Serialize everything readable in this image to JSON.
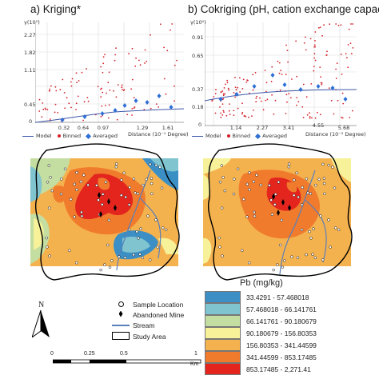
{
  "panels": {
    "a": {
      "title": "a) Kriging*",
      "yunit": "γ(10⁰)",
      "yticks": [
        "2.27",
        "1.82",
        "1.11",
        "0.45",
        "0"
      ],
      "xticks": [
        "0.32",
        "0.64",
        "0.97",
        "1.29",
        "1.61"
      ],
      "xlabel": "Distance (10⁻¹ Degree)",
      "legend": {
        "model": "Model",
        "binned": "Binned",
        "averaged": "Averaged"
      }
    },
    "b": {
      "title": "b) Cokriging (pH, cation exchange capacity)",
      "yunit": "γ(10⁰)",
      "yticks": [
        "0.91",
        "0.65",
        "0.37",
        "0.18",
        "0"
      ],
      "xticks": [
        "1.14",
        "2.27",
        "3.41",
        "4.55",
        "5.68"
      ],
      "xlabel": "Distance (10⁻² Degree)",
      "legend": {
        "model": "Model",
        "binned": "Binned",
        "averaged": "Averaged"
      }
    }
  },
  "map_legend": {
    "sample_location": "Sample Location",
    "abandoned_mine": "Abandoned Mine",
    "stream": "Stream",
    "study_area": "Study Area"
  },
  "north": "N",
  "scale": {
    "labels": [
      "0",
      "0.25",
      "0.5",
      "1"
    ],
    "unit": "Km"
  },
  "pb_legend": {
    "title": "Pb (mg/kg)",
    "classes": [
      {
        "label": "33.4291 - 57.468018",
        "color": "#3b8fc4"
      },
      {
        "label": "57.468018 - 66.141761",
        "color": "#7fc4cf"
      },
      {
        "label": "66.141761 - 90.180679",
        "color": "#c4dda0"
      },
      {
        "label": "90.180679 - 156.80353",
        "color": "#f7f19a"
      },
      {
        "label": "156.80353 - 341.44599",
        "color": "#f4b24f"
      },
      {
        "label": "341.44599 - 853.17485",
        "color": "#f07b2d"
      },
      {
        "label": "853.17485 - 2,271.41",
        "color": "#e3251e"
      }
    ]
  },
  "colors": {
    "binned": "#d4212b",
    "averaged": "#2f6fd6",
    "model": "#3c58a8",
    "stream": "#5b7fb8",
    "boundary": "#000000"
  }
}
